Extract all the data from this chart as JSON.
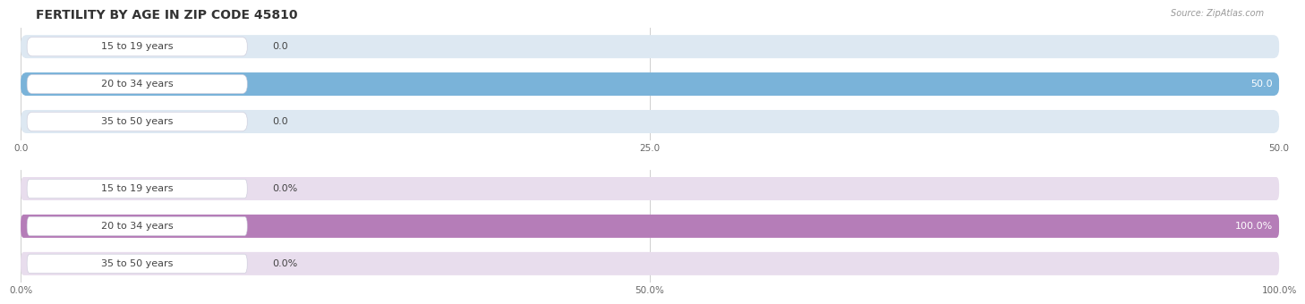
{
  "title": "FERTILITY BY AGE IN ZIP CODE 45810",
  "source": "Source: ZipAtlas.com",
  "top_chart": {
    "categories": [
      "15 to 19 years",
      "20 to 34 years",
      "35 to 50 years"
    ],
    "values": [
      0.0,
      50.0,
      0.0
    ],
    "xlim": [
      0,
      50
    ],
    "xticks": [
      0.0,
      25.0,
      50.0
    ],
    "bar_color": "#7ab3d9",
    "bar_bg_color": "#dde8f2",
    "bar_height": 0.62
  },
  "bottom_chart": {
    "categories": [
      "15 to 19 years",
      "20 to 34 years",
      "35 to 50 years"
    ],
    "values": [
      0.0,
      100.0,
      0.0
    ],
    "xlim": [
      0,
      100
    ],
    "xticks": [
      0.0,
      50.0,
      100.0
    ],
    "xtick_labels": [
      "0.0%",
      "50.0%",
      "100.0%"
    ],
    "bar_color": "#b57db8",
    "bar_bg_color": "#e8dded",
    "bar_height": 0.62
  },
  "fig_bg_color": "#ffffff",
  "title_fontsize": 10,
  "label_fontsize": 8,
  "tick_fontsize": 7.5,
  "source_fontsize": 7,
  "label_box_color": "#ffffff",
  "label_text_color": "#444444"
}
